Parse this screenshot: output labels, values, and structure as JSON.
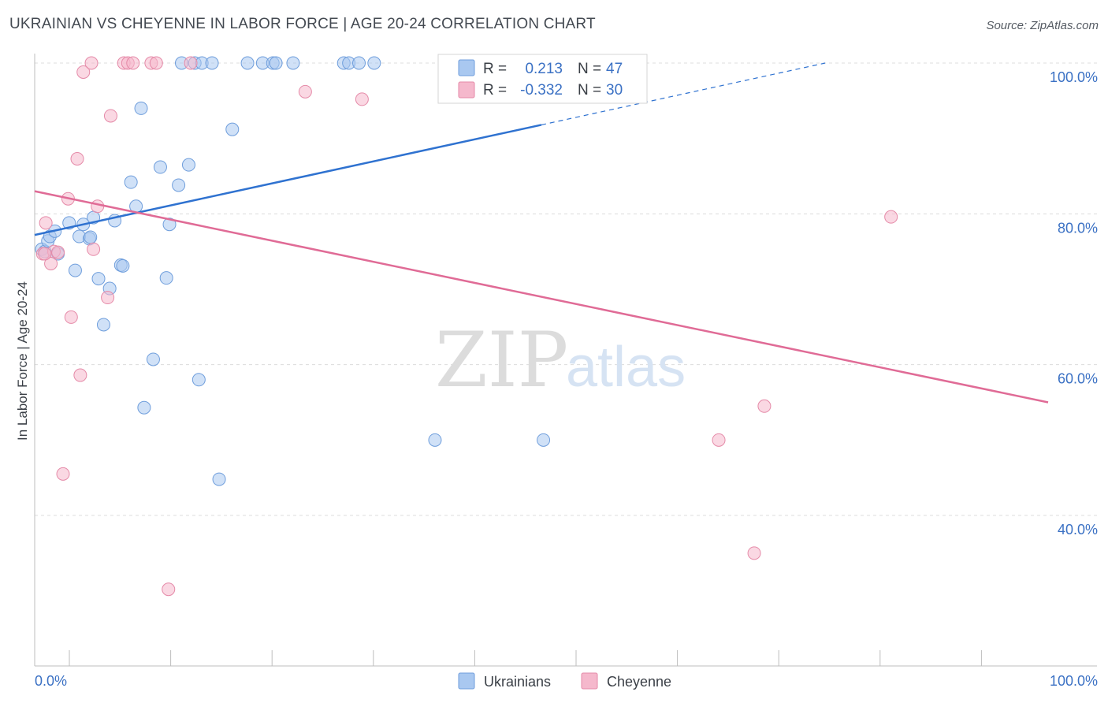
{
  "header": {
    "title": "UKRAINIAN VS CHEYENNE IN LABOR FORCE | AGE 20-24 CORRELATION CHART",
    "source": "Source: ZipAtlas.com"
  },
  "watermark": {
    "zip": "ZIP",
    "atlas": "atlas"
  },
  "legend": {
    "rows": [
      {
        "r_label": "R =",
        "r_value": "0.213",
        "n_label": "N =",
        "n_value": "47",
        "color": "#a9c8f0"
      },
      {
        "r_label": "R =",
        "r_value": "-0.332",
        "n_label": "N =",
        "n_value": "30",
        "color": "#f5b8cc"
      }
    ]
  },
  "bottom_legend": [
    {
      "label": "Ukrainians",
      "color": "#a9c8f0"
    },
    {
      "label": "Cheyenne",
      "color": "#f5b8cc"
    }
  ],
  "chart_data": {
    "type": "scatter",
    "xlabel": "",
    "ylabel": "In Labor Force | Age 20-24",
    "xlim": [
      0,
      100
    ],
    "ylim": [
      21,
      102
    ],
    "x_tick_labels": [
      "0.0%",
      "100.0%"
    ],
    "y_ticks": [
      40,
      60,
      80,
      100
    ],
    "y_tick_labels": [
      "40.0%",
      "60.0%",
      "80.0%",
      "100.0%"
    ],
    "grid": true,
    "legend_position": "top-center",
    "series": [
      {
        "name": "Ukrainians",
        "color": "#a9c8f0",
        "stroke": "#6f9edc",
        "line_color": "#2f72d0",
        "trend": {
          "x": [
            0,
            50
          ],
          "y": [
            77.2,
            91.8
          ],
          "dashed_to": [
            78,
            100
          ]
        },
        "points": [
          [
            0.7,
            75.3
          ],
          [
            1.0,
            75.0
          ],
          [
            1.3,
            76.4
          ],
          [
            1.5,
            77.0
          ],
          [
            2.0,
            77.7
          ],
          [
            2.3,
            74.7
          ],
          [
            3.4,
            78.8
          ],
          [
            4.0,
            72.5
          ],
          [
            4.4,
            77.0
          ],
          [
            4.8,
            78.6
          ],
          [
            5.4,
            76.7
          ],
          [
            5.5,
            76.9
          ],
          [
            5.8,
            79.5
          ],
          [
            6.3,
            71.4
          ],
          [
            6.8,
            65.3
          ],
          [
            7.4,
            70.1
          ],
          [
            7.9,
            79.1
          ],
          [
            8.5,
            73.2
          ],
          [
            8.7,
            73.1
          ],
          [
            9.5,
            84.2
          ],
          [
            10.0,
            81.0
          ],
          [
            10.5,
            94.0
          ],
          [
            10.8,
            54.3
          ],
          [
            11.7,
            60.7
          ],
          [
            12.4,
            86.2
          ],
          [
            13.0,
            71.5
          ],
          [
            13.3,
            78.6
          ],
          [
            14.2,
            83.8
          ],
          [
            14.5,
            100.0
          ],
          [
            15.2,
            86.5
          ],
          [
            15.8,
            100.0
          ],
          [
            16.2,
            58.0
          ],
          [
            16.5,
            100.0
          ],
          [
            17.5,
            100.0
          ],
          [
            18.2,
            44.8
          ],
          [
            19.5,
            91.2
          ],
          [
            21.0,
            100.0
          ],
          [
            22.5,
            100.0
          ],
          [
            23.5,
            100.0
          ],
          [
            23.8,
            100.0
          ],
          [
            25.5,
            100.0
          ],
          [
            30.5,
            100.0
          ],
          [
            31.0,
            100.0
          ],
          [
            32.0,
            100.0
          ],
          [
            33.5,
            100.0
          ],
          [
            39.5,
            50.0
          ],
          [
            50.2,
            50.0
          ]
        ]
      },
      {
        "name": "Cheyenne",
        "color": "#f5b8cc",
        "stroke": "#e58aa8",
        "line_color": "#e06b96",
        "trend": {
          "x": [
            0,
            100
          ],
          "y": [
            83.0,
            55.0
          ]
        },
        "points": [
          [
            0.8,
            74.7
          ],
          [
            1.1,
            78.8
          ],
          [
            1.6,
            73.4
          ],
          [
            1.9,
            75.0
          ],
          [
            2.3,
            74.9
          ],
          [
            2.8,
            45.5
          ],
          [
            3.3,
            82.0
          ],
          [
            3.6,
            66.3
          ],
          [
            4.2,
            87.3
          ],
          [
            4.5,
            58.6
          ],
          [
            4.8,
            98.8
          ],
          [
            5.6,
            100.0
          ],
          [
            5.8,
            75.3
          ],
          [
            6.2,
            81.0
          ],
          [
            7.2,
            68.9
          ],
          [
            7.5,
            93.0
          ],
          [
            8.8,
            100.0
          ],
          [
            9.2,
            100.0
          ],
          [
            9.7,
            100.0
          ],
          [
            11.5,
            100.0
          ],
          [
            12.0,
            100.0
          ],
          [
            13.2,
            30.2
          ],
          [
            15.4,
            100.0
          ],
          [
            26.7,
            96.2
          ],
          [
            32.3,
            95.2
          ],
          [
            67.5,
            50.0
          ],
          [
            72.0,
            54.5
          ],
          [
            71.0,
            35.0
          ],
          [
            84.5,
            79.6
          ],
          [
            1.0,
            74.7
          ]
        ]
      }
    ]
  }
}
